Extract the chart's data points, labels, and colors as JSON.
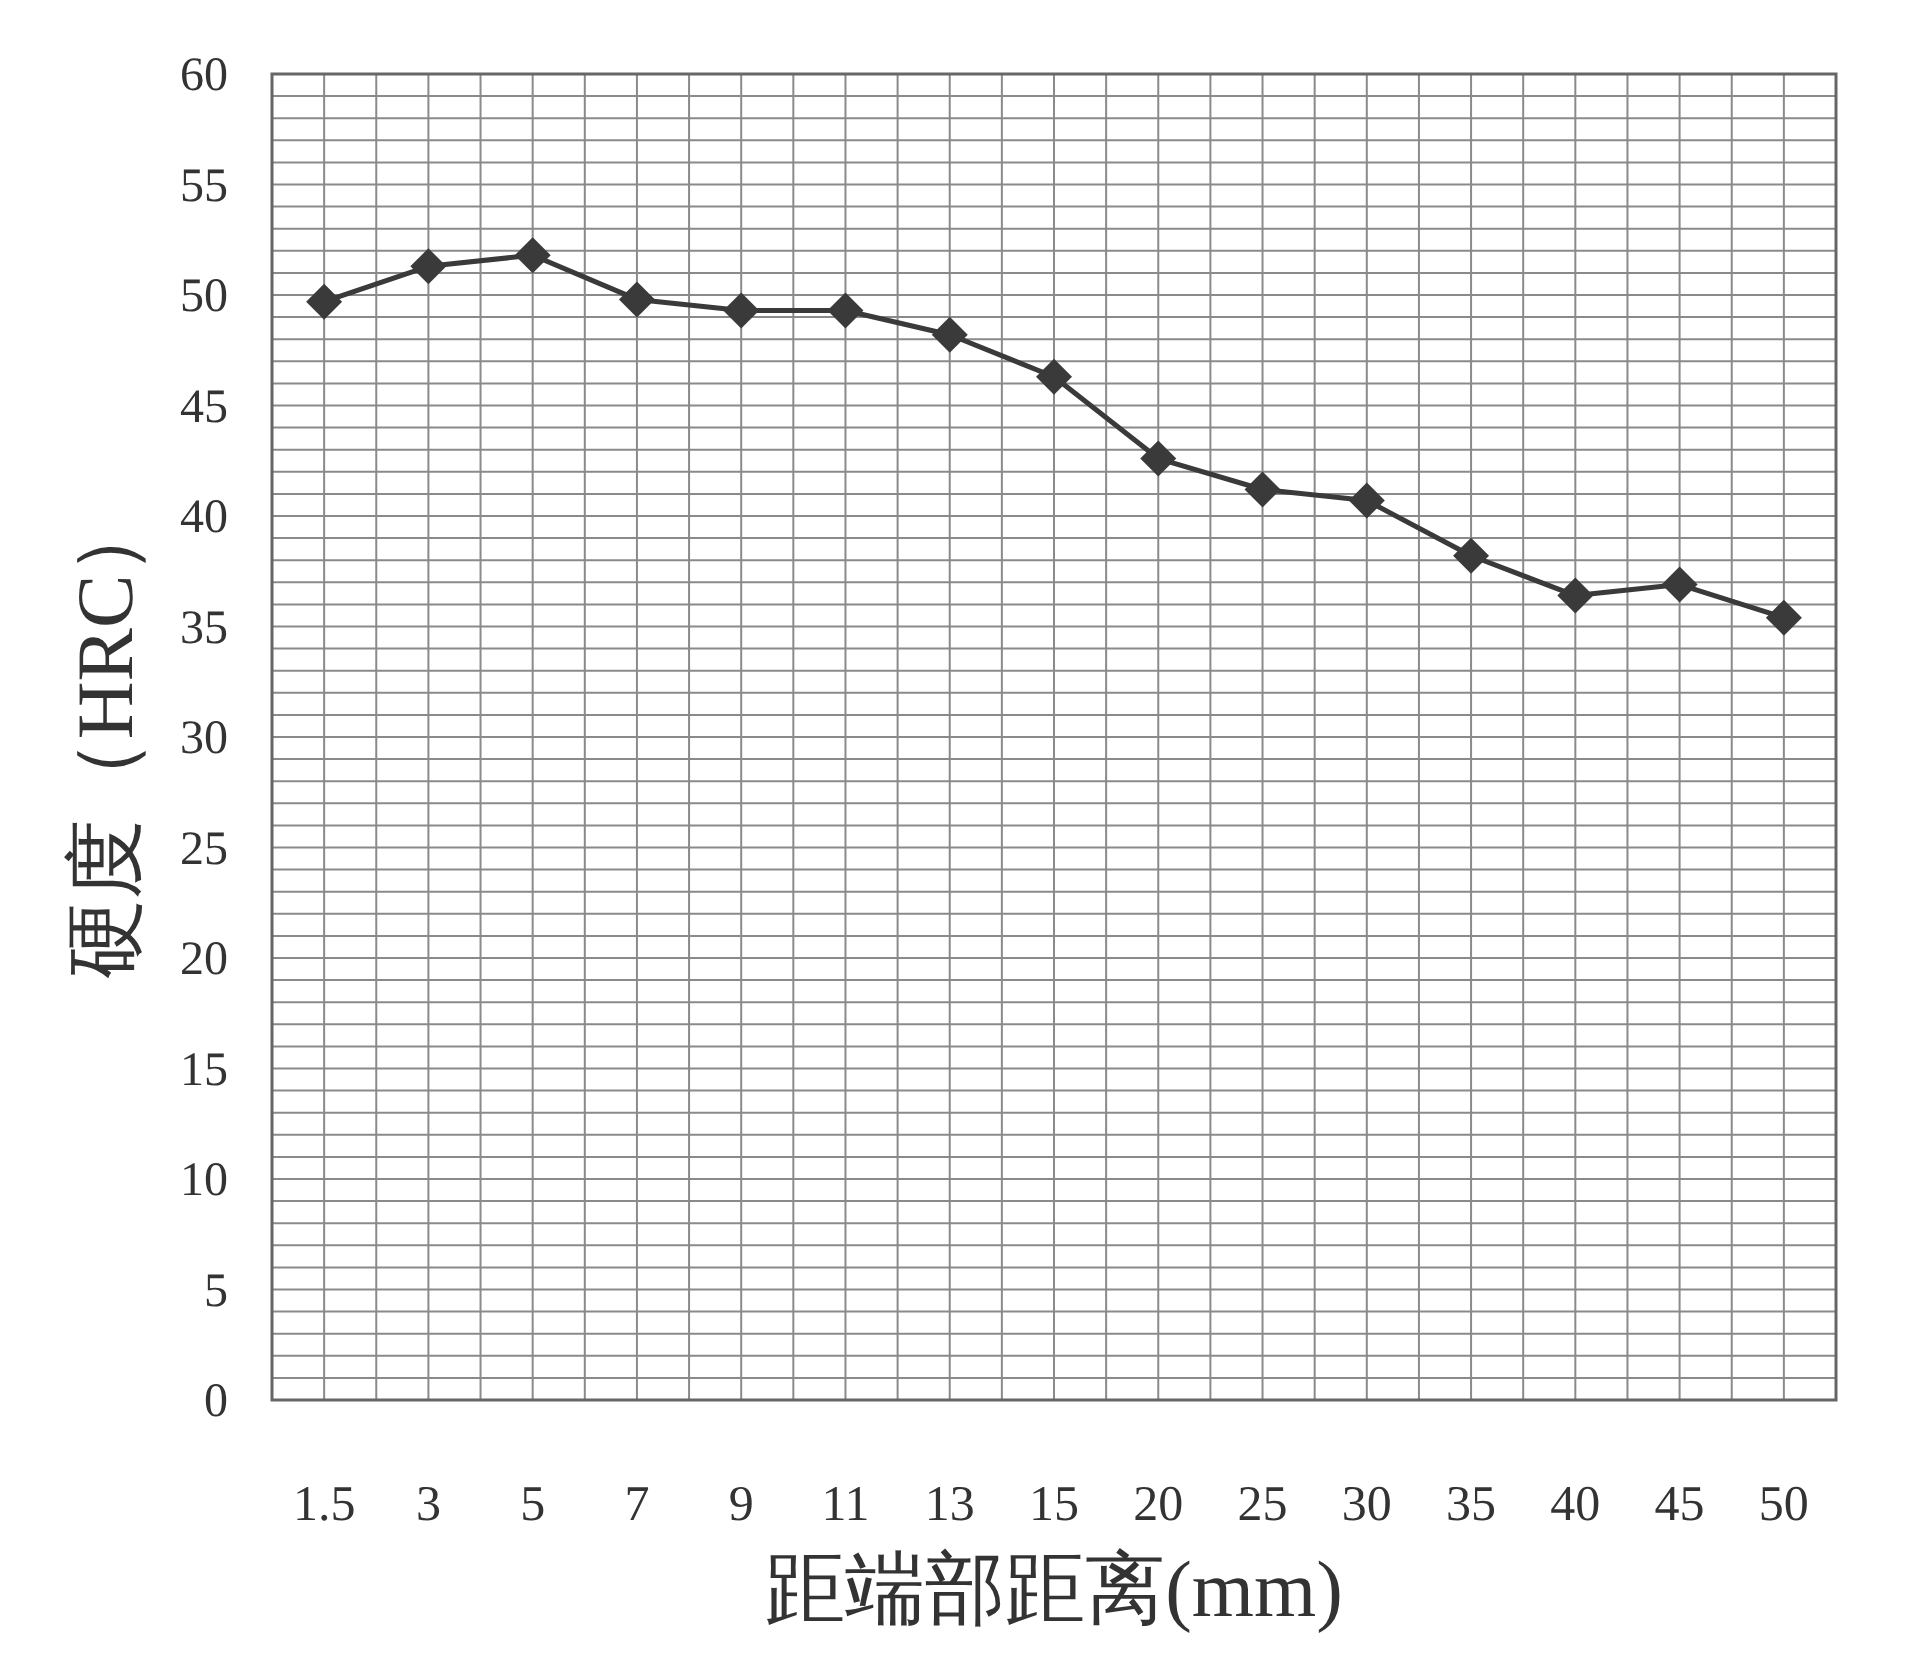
{
  "chart_data": {
    "type": "line",
    "xlabel": "距端部距离(mm)",
    "ylabel": "硬度（HRC）",
    "categories": [
      "1.5",
      "3",
      "5",
      "7",
      "9",
      "11",
      "13",
      "15",
      "20",
      "25",
      "30",
      "35",
      "40",
      "45",
      "50"
    ],
    "series": [
      {
        "color": "#3a3a3a",
        "values": [
          49.7,
          51.3,
          51.8,
          49.8,
          49.3,
          49.3,
          48.2,
          46.3,
          42.6,
          41.2,
          40.7,
          38.2,
          36.4,
          36.9,
          35.4
        ]
      }
    ],
    "ylim": [
      0,
      60
    ],
    "yticks": [
      0,
      5,
      10,
      15,
      20,
      25,
      30,
      35,
      40,
      45,
      50,
      55,
      60
    ],
    "grid": true,
    "marker": "diamond",
    "line_style": "solid"
  }
}
